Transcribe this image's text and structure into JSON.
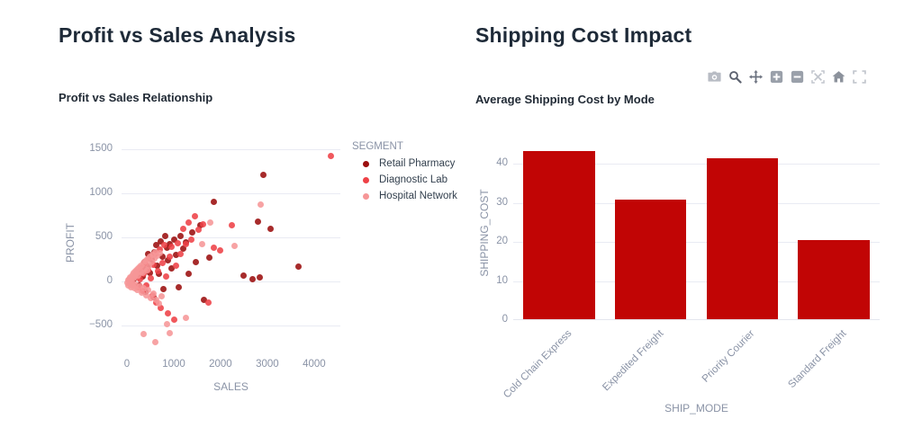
{
  "left_panel": {
    "heading": "Profit vs Sales Analysis"
  },
  "right_panel": {
    "heading": "Shipping Cost Impact"
  },
  "colors": {
    "heading_text": "#1e2a38",
    "chart_title_text": "#222b36",
    "axis_text": "#8a93a6",
    "gridline": "#e9ebf3",
    "bar_fill": "#c10505"
  },
  "modebar": {
    "icons": [
      {
        "name": "camera-icon",
        "color": "#b8bcc4"
      },
      {
        "name": "zoom-icon",
        "color": "#5d6370"
      },
      {
        "name": "pan-icon",
        "color": "#6d7380"
      },
      {
        "name": "zoom-in-icon",
        "color": "#9aa0aa"
      },
      {
        "name": "zoom-out-icon",
        "color": "#9aa0aa"
      },
      {
        "name": "autoscale-icon",
        "color": "#c2c6cd"
      },
      {
        "name": "home-icon",
        "color": "#8c929c"
      },
      {
        "name": "fullscreen-icon",
        "color": "#c2c6cd"
      }
    ]
  },
  "chart_data": [
    {
      "type": "scatter",
      "title": "Profit vs Sales Relationship",
      "xlabel": "SALES",
      "ylabel": "PROFIT",
      "legend_title": "SEGMENT",
      "x_ticks": [
        0,
        1000,
        2000,
        3000,
        4000
      ],
      "y_ticks": [
        1500,
        1000,
        500,
        0,
        -500
      ],
      "xlim": [
        -115,
        4560
      ],
      "ylim": [
        -745,
        1615
      ],
      "grid": "horizontal-only",
      "legend_position": "right",
      "series": [
        {
          "name": "Retail Pharmacy",
          "color": "#9b0e0e",
          "points": [
            [
              150,
              30
            ],
            [
              220,
              85
            ],
            [
              260,
              -45
            ],
            [
              310,
              140
            ],
            [
              340,
              60
            ],
            [
              380,
              220
            ],
            [
              400,
              -120
            ],
            [
              430,
              170
            ],
            [
              460,
              310
            ],
            [
              490,
              95
            ],
            [
              520,
              250
            ],
            [
              560,
              -180
            ],
            [
              580,
              330
            ],
            [
              620,
              410
            ],
            [
              650,
              180
            ],
            [
              680,
              90
            ],
            [
              720,
              460
            ],
            [
              750,
              280
            ],
            [
              780,
              -90
            ],
            [
              820,
              520
            ],
            [
              850,
              380
            ],
            [
              880,
              240
            ],
            [
              920,
              430
            ],
            [
              960,
              150
            ],
            [
              1000,
              480
            ],
            [
              1050,
              300
            ],
            [
              1100,
              -60
            ],
            [
              1150,
              520
            ],
            [
              1200,
              370
            ],
            [
              1250,
              450
            ],
            [
              1320,
              90
            ],
            [
              1400,
              560
            ],
            [
              1480,
              220
            ],
            [
              1560,
              640
            ],
            [
              1650,
              -210
            ],
            [
              1765,
              270
            ],
            [
              1865,
              910
            ],
            [
              2500,
              64
            ],
            [
              2680,
              30
            ],
            [
              2830,
              45
            ],
            [
              2808,
              685
            ],
            [
              2923,
              1217
            ],
            [
              3077,
              600
            ],
            [
              3665,
              170
            ]
          ]
        },
        {
          "name": "Diagnostic Lab",
          "color": "#ee4147",
          "points": [
            [
              80,
              20
            ],
            [
              120,
              -30
            ],
            [
              160,
              60
            ],
            [
              200,
              110
            ],
            [
              240,
              -70
            ],
            [
              270,
              30
            ],
            [
              300,
              160
            ],
            [
              330,
              -110
            ],
            [
              360,
              90
            ],
            [
              390,
              200
            ],
            [
              420,
              -40
            ],
            [
              450,
              130
            ],
            [
              480,
              260
            ],
            [
              510,
              40
            ],
            [
              540,
              -160
            ],
            [
              570,
              190
            ],
            [
              600,
              310
            ],
            [
              630,
              -240
            ],
            [
              660,
              120
            ],
            [
              700,
              360
            ],
            [
              730,
              -300
            ],
            [
              760,
              210
            ],
            [
              800,
              420
            ],
            [
              840,
              60
            ],
            [
              880,
              -360
            ],
            [
              920,
              280
            ],
            [
              960,
              390
            ],
            [
              1000,
              -430
            ],
            [
              1040,
              180
            ],
            [
              1090,
              440
            ],
            [
              1140,
              310
            ],
            [
              1200,
              600
            ],
            [
              1260,
              430
            ],
            [
              1320,
              670
            ],
            [
              1380,
              480
            ],
            [
              1450,
              740
            ],
            [
              1530,
              590
            ],
            [
              1620,
              650
            ],
            [
              1750,
              -240
            ],
            [
              1850,
              380
            ],
            [
              1995,
              355
            ],
            [
              2250,
              640
            ],
            [
              4365,
              1430
            ]
          ]
        },
        {
          "name": "Hospital Network",
          "color": "#f69697",
          "points": [
            [
              10,
              -10
            ],
            [
              20,
              15
            ],
            [
              30,
              -40
            ],
            [
              40,
              30
            ],
            [
              50,
              5
            ],
            [
              60,
              -25
            ],
            [
              70,
              45
            ],
            [
              80,
              -60
            ],
            [
              90,
              20
            ],
            [
              100,
              60
            ],
            [
              110,
              -15
            ],
            [
              120,
              80
            ],
            [
              130,
              -50
            ],
            [
              140,
              35
            ],
            [
              150,
              100
            ],
            [
              160,
              -80
            ],
            [
              170,
              55
            ],
            [
              180,
              120
            ],
            [
              190,
              -30
            ],
            [
              200,
              90
            ],
            [
              215,
              140
            ],
            [
              230,
              -100
            ],
            [
              245,
              70
            ],
            [
              260,
              160
            ],
            [
              275,
              -55
            ],
            [
              290,
              110
            ],
            [
              305,
              185
            ],
            [
              320,
              -130
            ],
            [
              335,
              95
            ],
            [
              350,
              210
            ],
            [
              365,
              -75
            ],
            [
              380,
              150
            ],
            [
              395,
              235
            ],
            [
              410,
              -160
            ],
            [
              425,
              130
            ],
            [
              440,
              255
            ],
            [
              455,
              -95
            ],
            [
              470,
              180
            ],
            [
              485,
              280
            ],
            [
              500,
              -190
            ],
            [
              520,
              220
            ],
            [
              540,
              300
            ],
            [
              560,
              -140
            ],
            [
              580,
              260
            ],
            [
              600,
              330
            ],
            [
              620,
              -210
            ],
            [
              650,
              290
            ],
            [
              680,
              -250
            ],
            [
              710,
              320
            ],
            [
              740,
              -170
            ],
            [
              850,
              -480
            ],
            [
              1250,
              -410
            ],
            [
              365,
              -595
            ],
            [
              615,
              -685
            ],
            [
              905,
              -585
            ],
            [
              1610,
              430
            ],
            [
              1770,
              675
            ],
            [
              2290,
              400
            ],
            [
              2865,
              870
            ]
          ]
        }
      ]
    },
    {
      "type": "bar",
      "title": "Average Shipping Cost by Mode",
      "xlabel": "SHIP_MODE",
      "ylabel": "SHIPPING_COST",
      "categories": [
        "Cold Chain Express",
        "Expedited Freight",
        "Priority Courier",
        "Standard Freight"
      ],
      "values": [
        43,
        30.6,
        41.2,
        20.3
      ],
      "bar_color": "#c10505",
      "y_ticks": [
        0,
        10,
        20,
        30,
        40
      ],
      "ylim": [
        0,
        44.4
      ],
      "grid": "horizontal-only",
      "tick_angle": -45
    }
  ]
}
